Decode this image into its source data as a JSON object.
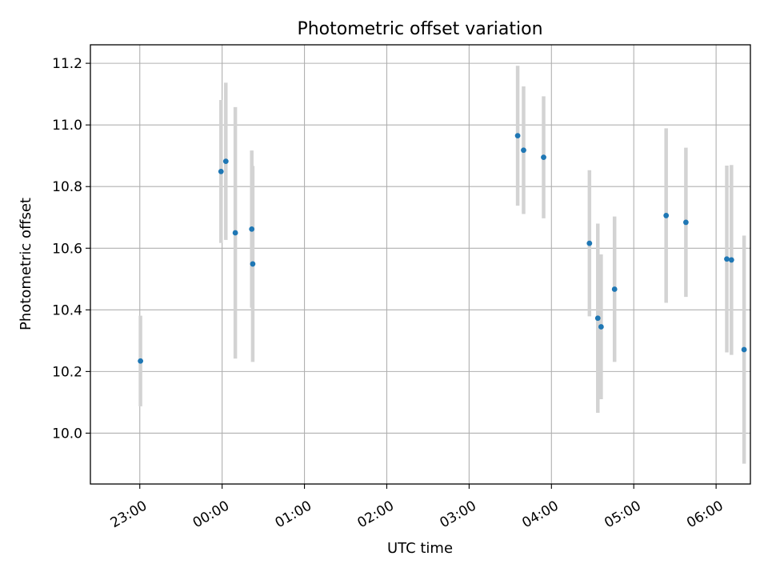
{
  "chart_data": {
    "type": "scatter",
    "title": "Photometric offset variation",
    "xlabel": "UTC time",
    "ylabel": "Photometric offset",
    "x_unit": "minutes relative to 23:00 UTC",
    "xlim": [
      -36,
      445
    ],
    "ylim": [
      9.835,
      11.26
    ],
    "x_ticks": [
      {
        "value": 0,
        "label": "23:00"
      },
      {
        "value": 60,
        "label": "00:00"
      },
      {
        "value": 120,
        "label": "01:00"
      },
      {
        "value": 180,
        "label": "02:00"
      },
      {
        "value": 240,
        "label": "03:00"
      },
      {
        "value": 300,
        "label": "04:00"
      },
      {
        "value": 360,
        "label": "05:00"
      },
      {
        "value": 420,
        "label": "06:00"
      }
    ],
    "y_ticks": [
      {
        "value": 10.0,
        "label": "10.0"
      },
      {
        "value": 10.2,
        "label": "10.2"
      },
      {
        "value": 10.4,
        "label": "10.4"
      },
      {
        "value": 10.6,
        "label": "10.6"
      },
      {
        "value": 10.8,
        "label": "10.8"
      },
      {
        "value": 11.0,
        "label": "11.0"
      },
      {
        "value": 11.2,
        "label": "11.2"
      }
    ],
    "grid": true,
    "colors": {
      "points": "#1f77b4",
      "error_bars": "#d3d3d3"
    },
    "points": [
      {
        "x": 0.5,
        "y": 10.234,
        "ylow": 10.087,
        "yhigh": 10.381
      },
      {
        "x": 59.2,
        "y": 10.849,
        "ylow": 10.617,
        "yhigh": 11.081
      },
      {
        "x": 62.7,
        "y": 10.882,
        "ylow": 10.627,
        "yhigh": 11.137
      },
      {
        "x": 69.6,
        "y": 10.65,
        "ylow": 10.242,
        "yhigh": 11.058
      },
      {
        "x": 81.6,
        "y": 10.662,
        "ylow": 10.407,
        "yhigh": 10.917
      },
      {
        "x": 82.3,
        "y": 10.549,
        "ylow": 10.231,
        "yhigh": 10.867
      },
      {
        "x": 275.4,
        "y": 10.965,
        "ylow": 10.738,
        "yhigh": 11.192
      },
      {
        "x": 279.7,
        "y": 10.918,
        "ylow": 10.711,
        "yhigh": 11.125
      },
      {
        "x": 294.3,
        "y": 10.895,
        "ylow": 10.697,
        "yhigh": 11.093
      },
      {
        "x": 327.7,
        "y": 10.616,
        "ylow": 10.379,
        "yhigh": 10.853
      },
      {
        "x": 333.8,
        "y": 10.373,
        "ylow": 10.066,
        "yhigh": 10.68
      },
      {
        "x": 336.2,
        "y": 10.345,
        "ylow": 10.11,
        "yhigh": 10.58
      },
      {
        "x": 346.0,
        "y": 10.467,
        "ylow": 10.231,
        "yhigh": 10.703
      },
      {
        "x": 383.6,
        "y": 10.706,
        "ylow": 10.423,
        "yhigh": 10.989
      },
      {
        "x": 398.0,
        "y": 10.684,
        "ylow": 10.442,
        "yhigh": 10.926
      },
      {
        "x": 427.8,
        "y": 10.565,
        "ylow": 10.262,
        "yhigh": 10.868
      },
      {
        "x": 431.2,
        "y": 10.562,
        "ylow": 10.254,
        "yhigh": 10.87
      },
      {
        "x": 440.4,
        "y": 10.271,
        "ylow": 9.901,
        "yhigh": 10.641
      }
    ]
  }
}
